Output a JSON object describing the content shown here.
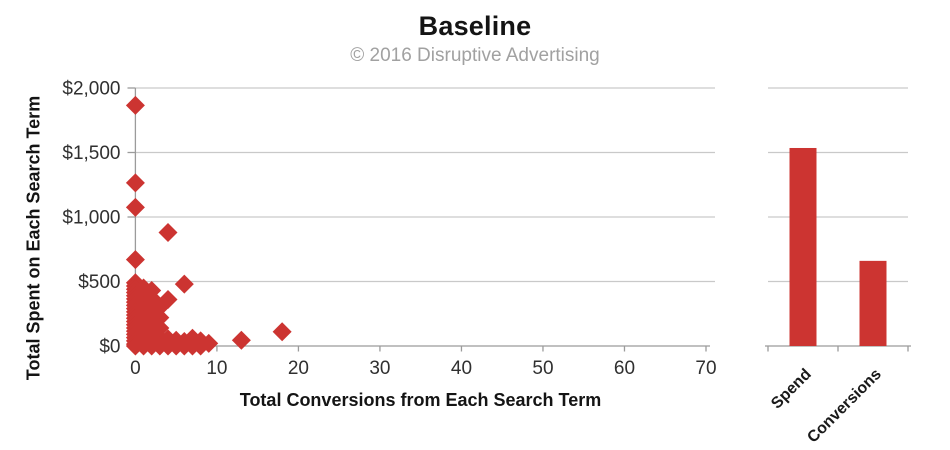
{
  "title": "Baseline",
  "subtitle": "© 2016 Disruptive Advertising",
  "colors": {
    "marker": "#cc3431",
    "bar": "#cc3431",
    "grid": "#c9c9c9",
    "axis": "#9b9b9b",
    "tick_label": "#303030",
    "title": "#141414",
    "subtitle": "#a1a1a1",
    "category_label": "#1a1a1a"
  },
  "chart_data": [
    {
      "type": "scatter",
      "title": "Baseline",
      "subtitle": "© 2016 Disruptive Advertising",
      "xlabel": "Total Conversions from Each Search Term",
      "ylabel": "Total Spent on Each Search Term",
      "xlim": [
        0,
        70
      ],
      "ylim": [
        0,
        2000
      ],
      "xticks": [
        0,
        10,
        20,
        30,
        40,
        50,
        60,
        70
      ],
      "yticks": [
        0,
        500,
        1000,
        1500,
        2000
      ],
      "ytick_labels": [
        "$0",
        "$500",
        "$1,000",
        "$1,500",
        "$2,000"
      ],
      "grid": true,
      "marker": "diamond",
      "points": [
        [
          0,
          1865
        ],
        [
          0,
          1265
        ],
        [
          0,
          1075
        ],
        [
          0,
          670
        ],
        [
          0,
          490
        ],
        [
          0,
          465
        ],
        [
          0,
          440
        ],
        [
          0,
          415
        ],
        [
          0,
          390
        ],
        [
          0,
          365
        ],
        [
          0,
          340
        ],
        [
          0,
          315
        ],
        [
          0,
          290
        ],
        [
          0,
          265
        ],
        [
          0,
          240
        ],
        [
          0,
          215
        ],
        [
          0,
          190
        ],
        [
          0,
          165
        ],
        [
          0,
          140
        ],
        [
          0,
          115
        ],
        [
          0,
          90
        ],
        [
          0,
          65
        ],
        [
          0,
          40
        ],
        [
          0,
          15
        ],
        [
          0,
          0
        ],
        [
          1,
          450
        ],
        [
          1,
          415
        ],
        [
          1,
          380
        ],
        [
          1,
          345
        ],
        [
          1,
          310
        ],
        [
          1,
          275
        ],
        [
          1,
          240
        ],
        [
          1,
          205
        ],
        [
          1,
          170
        ],
        [
          1,
          135
        ],
        [
          1,
          100
        ],
        [
          1,
          65
        ],
        [
          1,
          30
        ],
        [
          1,
          0
        ],
        [
          2,
          430
        ],
        [
          2,
          370
        ],
        [
          2,
          310
        ],
        [
          2,
          250
        ],
        [
          2,
          190
        ],
        [
          2,
          130
        ],
        [
          2,
          70
        ],
        [
          2,
          20
        ],
        [
          2,
          0
        ],
        [
          3,
          300
        ],
        [
          3,
          220
        ],
        [
          3,
          140
        ],
        [
          3,
          60
        ],
        [
          3,
          0
        ],
        [
          4,
          880
        ],
        [
          4,
          360
        ],
        [
          4,
          55
        ],
        [
          4,
          0
        ],
        [
          5,
          45
        ],
        [
          5,
          0
        ],
        [
          6,
          480
        ],
        [
          6,
          35
        ],
        [
          6,
          0
        ],
        [
          7,
          60
        ],
        [
          7,
          0
        ],
        [
          8,
          40
        ],
        [
          8,
          0
        ],
        [
          9,
          20
        ],
        [
          13,
          45
        ],
        [
          18,
          110
        ]
      ]
    },
    {
      "type": "bar",
      "categories": [
        "Spend",
        "Conversions"
      ],
      "values": [
        1535,
        660
      ],
      "ylim": [
        0,
        2000
      ],
      "yticks": [
        0,
        500,
        1000,
        1500,
        2000
      ],
      "grid": true,
      "legend": "none"
    }
  ]
}
